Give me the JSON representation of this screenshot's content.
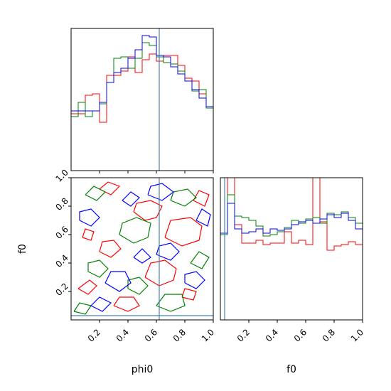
{
  "chart_data": {
    "type": "corner",
    "parameters": [
      "phi0",
      "f0"
    ],
    "axis_labels": {
      "x_bottom_left": "phi0",
      "x_bottom_right": "f0",
      "y_left": "f0"
    },
    "range": {
      "phi0": [
        0,
        1
      ],
      "f0": [
        0,
        1
      ]
    },
    "ticks": {
      "phi0": [
        "0.2",
        "0.4",
        "0.6",
        "0.8",
        "1.0"
      ],
      "f0": [
        "0.2",
        "0.4",
        "0.6",
        "0.8",
        "1.0"
      ],
      "f0_y": [
        "0.2",
        "0.4",
        "0.6",
        "0.8",
        "1.0"
      ]
    },
    "truth": {
      "phi0": 0.62,
      "f0": 0.03
    },
    "truth_color": "#4682b4",
    "series_colors": [
      "#ff0000",
      "#008000",
      "#0000ff"
    ],
    "hist_phi0": {
      "bins": 20,
      "series": [
        {
          "color": "#ff0000",
          "values": [
            0.4,
            0.4,
            0.53,
            0.54,
            0.34,
            0.67,
            0.67,
            0.7,
            0.8,
            0.69,
            0.78,
            0.82,
            0.77,
            0.81,
            0.81,
            0.74,
            0.65,
            0.63,
            0.54,
            0.45
          ]
        },
        {
          "color": "#008000",
          "values": [
            0.38,
            0.48,
            0.38,
            0.42,
            0.47,
            0.62,
            0.79,
            0.8,
            0.72,
            0.79,
            0.9,
            0.88,
            0.8,
            0.76,
            0.75,
            0.7,
            0.63,
            0.56,
            0.57,
            0.44
          ]
        },
        {
          "color": "#0000ff",
          "values": [
            0.42,
            0.42,
            0.42,
            0.42,
            0.48,
            0.62,
            0.69,
            0.72,
            0.79,
            0.85,
            0.95,
            0.94,
            0.81,
            0.8,
            0.73,
            0.68,
            0.63,
            0.57,
            0.51,
            0.45
          ]
        }
      ],
      "ylim": [
        0,
        1
      ]
    },
    "hist_f0": {
      "bins": 20,
      "series": [
        {
          "color": "#ff0000",
          "values": [
            0.61,
            1.0,
            0.67,
            0.54,
            0.54,
            0.56,
            0.53,
            0.54,
            0.54,
            0.62,
            0.54,
            0.56,
            0.53,
            1.0,
            0.69,
            0.49,
            0.52,
            0.53,
            0.55,
            0.53
          ]
        },
        {
          "color": "#008000",
          "values": [
            0.6,
            0.88,
            0.73,
            0.72,
            0.7,
            0.66,
            0.59,
            0.6,
            0.62,
            0.65,
            0.7,
            0.68,
            0.71,
            0.72,
            0.68,
            0.75,
            0.74,
            0.76,
            0.72,
            0.68
          ]
        },
        {
          "color": "#0000ff",
          "values": [
            0.61,
            0.82,
            0.64,
            0.61,
            0.62,
            0.64,
            0.61,
            0.64,
            0.63,
            0.64,
            0.67,
            0.69,
            0.7,
            0.68,
            0.71,
            0.74,
            0.72,
            0.75,
            0.7,
            0.64
          ]
        }
      ],
      "ylim": [
        0,
        1
      ]
    },
    "contour_2d": {
      "x_param": "phi0",
      "y_param": "f0",
      "note_levels": "three series of irregular contour loops filling the panel",
      "series": [
        {
          "color": "#ff0000",
          "contours": [
            [
              [
                0.05,
                0.22
              ],
              [
                0.12,
                0.18
              ],
              [
                0.18,
                0.24
              ],
              [
                0.13,
                0.28
              ],
              [
                0.05,
                0.22
              ]
            ],
            [
              [
                0.2,
                0.48
              ],
              [
                0.28,
                0.44
              ],
              [
                0.35,
                0.5
              ],
              [
                0.3,
                0.56
              ],
              [
                0.22,
                0.55
              ],
              [
                0.2,
                0.48
              ]
            ],
            [
              [
                0.44,
                0.76
              ],
              [
                0.52,
                0.7
              ],
              [
                0.6,
                0.72
              ],
              [
                0.64,
                0.8
              ],
              [
                0.56,
                0.84
              ],
              [
                0.46,
                0.82
              ],
              [
                0.44,
                0.76
              ]
            ],
            [
              [
                0.52,
                0.3
              ],
              [
                0.62,
                0.24
              ],
              [
                0.72,
                0.28
              ],
              [
                0.74,
                0.36
              ],
              [
                0.66,
                0.42
              ],
              [
                0.56,
                0.4
              ],
              [
                0.52,
                0.3
              ]
            ],
            [
              [
                0.66,
                0.58
              ],
              [
                0.78,
                0.52
              ],
              [
                0.9,
                0.56
              ],
              [
                0.92,
                0.66
              ],
              [
                0.84,
                0.72
              ],
              [
                0.7,
                0.7
              ],
              [
                0.66,
                0.58
              ]
            ],
            [
              [
                0.08,
                0.58
              ],
              [
                0.14,
                0.56
              ],
              [
                0.16,
                0.62
              ],
              [
                0.1,
                0.64
              ],
              [
                0.08,
                0.58
              ]
            ],
            [
              [
                0.3,
                0.1
              ],
              [
                0.4,
                0.06
              ],
              [
                0.48,
                0.1
              ],
              [
                0.44,
                0.16
              ],
              [
                0.34,
                0.16
              ],
              [
                0.3,
                0.1
              ]
            ],
            [
              [
                0.78,
                0.16
              ],
              [
                0.86,
                0.14
              ],
              [
                0.88,
                0.2
              ],
              [
                0.8,
                0.22
              ],
              [
                0.78,
                0.16
              ]
            ],
            [
              [
                0.2,
                0.92
              ],
              [
                0.28,
                0.88
              ],
              [
                0.34,
                0.94
              ],
              [
                0.26,
                0.97
              ],
              [
                0.2,
                0.92
              ]
            ],
            [
              [
                0.86,
                0.84
              ],
              [
                0.94,
                0.8
              ],
              [
                0.97,
                0.88
              ],
              [
                0.9,
                0.91
              ],
              [
                0.86,
                0.84
              ]
            ]
          ]
        },
        {
          "color": "#008000",
          "contours": [
            [
              [
                0.1,
                0.88
              ],
              [
                0.18,
                0.84
              ],
              [
                0.24,
                0.9
              ],
              [
                0.16,
                0.94
              ],
              [
                0.1,
                0.88
              ]
            ],
            [
              [
                0.34,
                0.6
              ],
              [
                0.44,
                0.54
              ],
              [
                0.54,
                0.58
              ],
              [
                0.56,
                0.68
              ],
              [
                0.46,
                0.72
              ],
              [
                0.36,
                0.68
              ],
              [
                0.34,
                0.6
              ]
            ],
            [
              [
                0.6,
                0.1
              ],
              [
                0.7,
                0.06
              ],
              [
                0.8,
                0.1
              ],
              [
                0.78,
                0.18
              ],
              [
                0.66,
                0.18
              ],
              [
                0.6,
                0.1
              ]
            ],
            [
              [
                0.12,
                0.34
              ],
              [
                0.2,
                0.3
              ],
              [
                0.26,
                0.36
              ],
              [
                0.2,
                0.42
              ],
              [
                0.12,
                0.4
              ],
              [
                0.12,
                0.34
              ]
            ],
            [
              [
                0.7,
                0.84
              ],
              [
                0.8,
                0.8
              ],
              [
                0.88,
                0.86
              ],
              [
                0.82,
                0.92
              ],
              [
                0.72,
                0.9
              ],
              [
                0.7,
                0.84
              ]
            ],
            [
              [
                0.4,
                0.22
              ],
              [
                0.48,
                0.18
              ],
              [
                0.54,
                0.24
              ],
              [
                0.48,
                0.3
              ],
              [
                0.4,
                0.28
              ],
              [
                0.4,
                0.22
              ]
            ],
            [
              [
                0.84,
                0.4
              ],
              [
                0.92,
                0.36
              ],
              [
                0.97,
                0.44
              ],
              [
                0.9,
                0.48
              ],
              [
                0.84,
                0.4
              ]
            ],
            [
              [
                0.02,
                0.06
              ],
              [
                0.1,
                0.04
              ],
              [
                0.14,
                0.1
              ],
              [
                0.06,
                0.12
              ],
              [
                0.02,
                0.06
              ]
            ]
          ]
        },
        {
          "color": "#0000ff",
          "contours": [
            [
              [
                0.06,
                0.7
              ],
              [
                0.14,
                0.66
              ],
              [
                0.2,
                0.72
              ],
              [
                0.14,
                0.78
              ],
              [
                0.06,
                0.76
              ],
              [
                0.06,
                0.7
              ]
            ],
            [
              [
                0.24,
                0.26
              ],
              [
                0.34,
                0.2
              ],
              [
                0.42,
                0.26
              ],
              [
                0.38,
                0.34
              ],
              [
                0.28,
                0.34
              ],
              [
                0.24,
                0.26
              ]
            ],
            [
              [
                0.54,
                0.88
              ],
              [
                0.64,
                0.84
              ],
              [
                0.72,
                0.9
              ],
              [
                0.64,
                0.96
              ],
              [
                0.56,
                0.94
              ],
              [
                0.54,
                0.88
              ]
            ],
            [
              [
                0.6,
                0.46
              ],
              [
                0.7,
                0.42
              ],
              [
                0.76,
                0.48
              ],
              [
                0.7,
                0.54
              ],
              [
                0.62,
                0.52
              ],
              [
                0.6,
                0.46
              ]
            ],
            [
              [
                0.8,
                0.26
              ],
              [
                0.88,
                0.22
              ],
              [
                0.94,
                0.28
              ],
              [
                0.88,
                0.34
              ],
              [
                0.8,
                0.32
              ],
              [
                0.8,
                0.26
              ]
            ],
            [
              [
                0.36,
                0.84
              ],
              [
                0.42,
                0.8
              ],
              [
                0.48,
                0.86
              ],
              [
                0.42,
                0.9
              ],
              [
                0.36,
                0.84
              ]
            ],
            [
              [
                0.14,
                0.1
              ],
              [
                0.22,
                0.06
              ],
              [
                0.28,
                0.12
              ],
              [
                0.2,
                0.16
              ],
              [
                0.14,
                0.1
              ]
            ],
            [
              [
                0.44,
                0.44
              ],
              [
                0.5,
                0.4
              ],
              [
                0.56,
                0.44
              ],
              [
                0.5,
                0.5
              ],
              [
                0.44,
                0.44
              ]
            ],
            [
              [
                0.88,
                0.7
              ],
              [
                0.96,
                0.66
              ],
              [
                0.98,
                0.74
              ],
              [
                0.92,
                0.78
              ],
              [
                0.88,
                0.7
              ]
            ]
          ]
        }
      ]
    }
  }
}
